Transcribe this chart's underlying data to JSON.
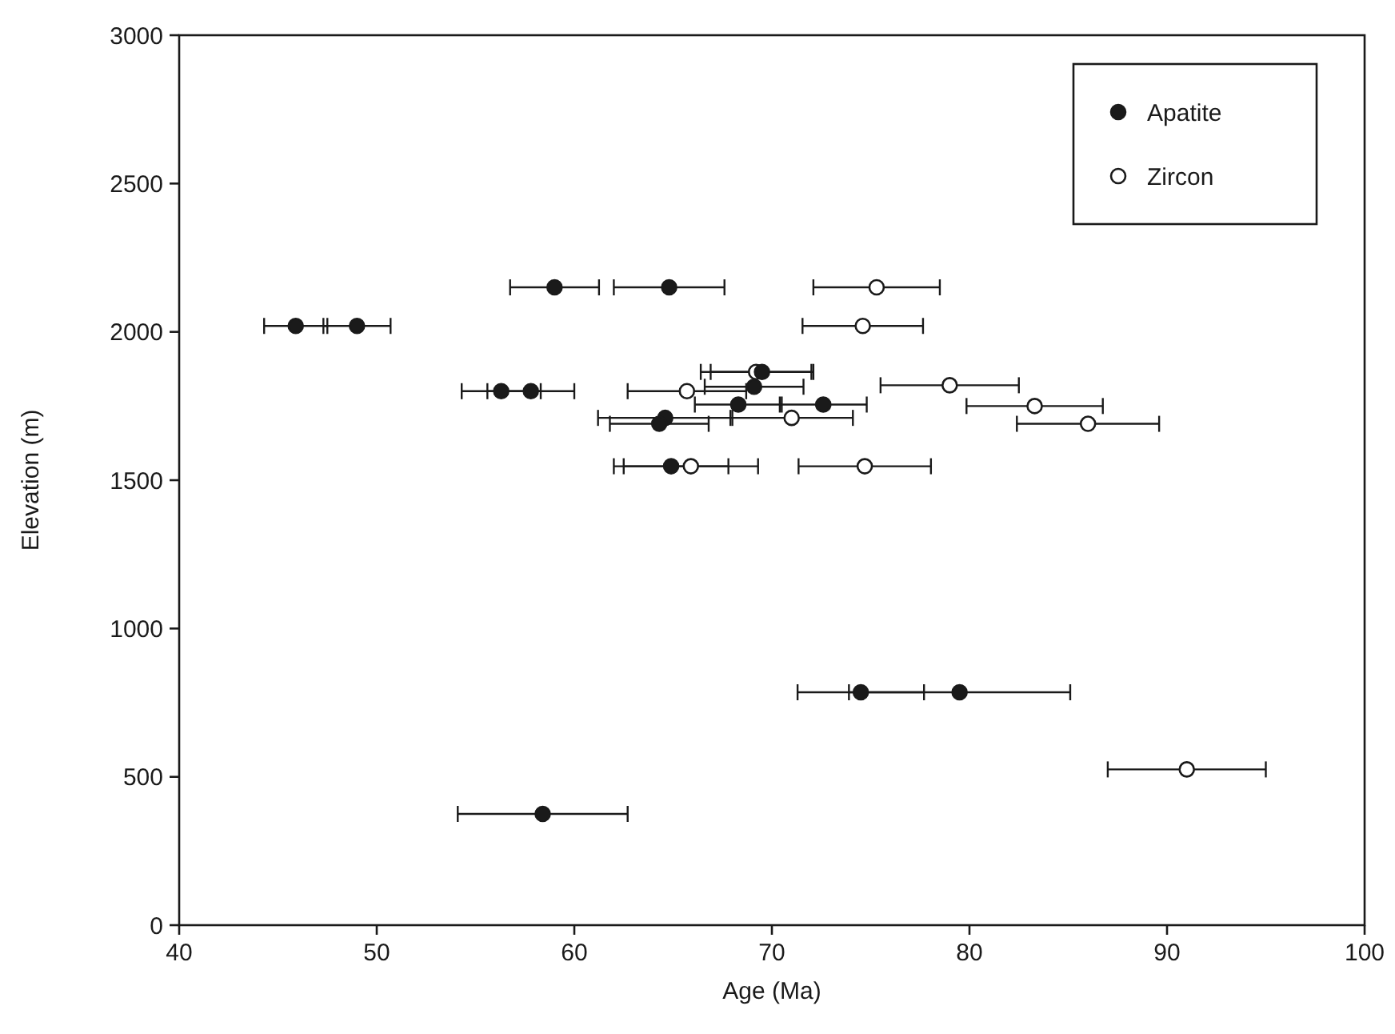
{
  "chart_data": {
    "type": "scatter",
    "xlabel": "Age (Ma)",
    "ylabel": "Elevation (m)",
    "xlim": [
      40,
      100
    ],
    "ylim": [
      0,
      3000
    ],
    "xticks": [
      40,
      50,
      60,
      70,
      80,
      90,
      100
    ],
    "yticks": [
      0,
      500,
      1000,
      1500,
      2000,
      2500,
      3000
    ],
    "legend": "top right",
    "grid": false,
    "series": [
      {
        "name": "Apatite",
        "color": "#1a1a1a",
        "marker": "circle",
        "x": [
          45.9,
          49.0,
          56.3,
          57.8,
          59.0,
          64.8,
          69.5,
          69.1,
          68.3,
          72.6,
          64.6,
          64.3,
          64.9,
          74.5,
          79.5,
          58.4
        ],
        "values": [
          2020,
          2020,
          1800,
          1800,
          2150,
          2150,
          1865,
          1815,
          1755,
          1755,
          1710,
          1690,
          1547,
          785,
          785,
          375
        ],
        "xerrors": [
          1.6,
          1.7,
          2.0,
          2.2,
          2.25,
          2.8,
          2.6,
          2.5,
          2.2,
          2.2,
          3.4,
          2.5,
          2.9,
          3.2,
          5.6,
          4.3
        ]
      },
      {
        "name": "Zircon",
        "color": "#ffffff",
        "marker": "circle",
        "x": [
          75.3,
          74.6,
          69.2,
          65.7,
          79.0,
          83.3,
          71.0,
          86.0,
          65.9,
          74.7,
          91.0
        ],
        "values": [
          2150,
          2020,
          1865,
          1800,
          1820,
          1750,
          1710,
          1690,
          1547,
          1547,
          525
        ],
        "xerrors": [
          3.2,
          3.05,
          2.8,
          3.0,
          3.5,
          3.45,
          3.1,
          3.6,
          3.4,
          3.35,
          4.0
        ]
      }
    ]
  }
}
